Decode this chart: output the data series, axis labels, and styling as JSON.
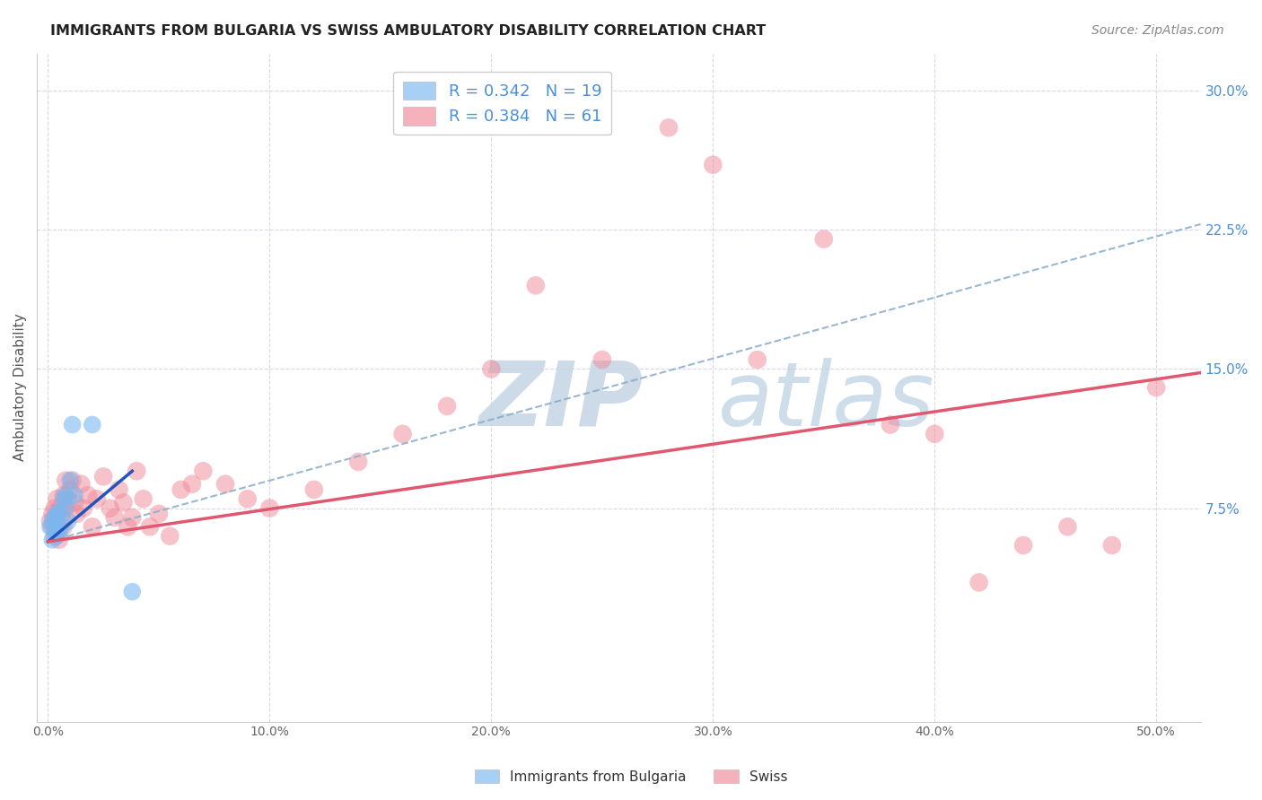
{
  "title": "IMMIGRANTS FROM BULGARIA VS SWISS AMBULATORY DISABILITY CORRELATION CHART",
  "source": "Source: ZipAtlas.com",
  "xlabel_ticks": [
    "0.0%",
    "10.0%",
    "20.0%",
    "30.0%",
    "40.0%",
    "50.0%"
  ],
  "ylabel_ticks": [
    "7.5%",
    "15.0%",
    "22.5%",
    "30.0%"
  ],
  "xlabel_vals": [
    0.0,
    0.1,
    0.2,
    0.3,
    0.4,
    0.5
  ],
  "ylabel_vals": [
    0.075,
    0.15,
    0.225,
    0.3
  ],
  "xlim": [
    -0.005,
    0.52
  ],
  "ylim": [
    -0.04,
    0.32
  ],
  "ylabel": "Ambulatory Disability",
  "legend_label_1": "R = 0.342   N = 19",
  "legend_label_2": "R = 0.384   N = 61",
  "legend_label_bottom_1": "Immigrants from Bulgaria",
  "legend_label_bottom_2": "Swiss",
  "bulgaria_color": "#7ab8f0",
  "swiss_color": "#f08898",
  "trendline_bulgaria_color": "#2255bb",
  "trendline_swiss_color": "#e05870",
  "trendline_dashed_color": "#88aac8",
  "watermark_color": "#c5d5e5",
  "title_color": "#222222",
  "source_color": "#888888",
  "tick_color": "#4a90d9",
  "xtick_color": "#666666",
  "ylabel_color": "#555555",
  "grid_color": "#d8d8e8",
  "bulgaria_x": [
    0.001,
    0.002,
    0.002,
    0.003,
    0.003,
    0.004,
    0.004,
    0.005,
    0.005,
    0.006,
    0.007,
    0.008,
    0.008,
    0.009,
    0.01,
    0.011,
    0.012,
    0.02,
    0.038
  ],
  "bulgaria_y": [
    0.065,
    0.068,
    0.058,
    0.07,
    0.064,
    0.072,
    0.06,
    0.073,
    0.062,
    0.065,
    0.08,
    0.082,
    0.076,
    0.068,
    0.09,
    0.12,
    0.082,
    0.12,
    0.03
  ],
  "swiss_x": [
    0.001,
    0.002,
    0.002,
    0.003,
    0.003,
    0.004,
    0.004,
    0.005,
    0.005,
    0.006,
    0.006,
    0.007,
    0.007,
    0.008,
    0.008,
    0.009,
    0.01,
    0.011,
    0.012,
    0.013,
    0.015,
    0.016,
    0.018,
    0.02,
    0.022,
    0.025,
    0.028,
    0.03,
    0.032,
    0.034,
    0.036,
    0.038,
    0.04,
    0.043,
    0.046,
    0.05,
    0.055,
    0.06,
    0.065,
    0.07,
    0.08,
    0.09,
    0.1,
    0.12,
    0.14,
    0.16,
    0.18,
    0.2,
    0.22,
    0.25,
    0.28,
    0.3,
    0.32,
    0.35,
    0.38,
    0.4,
    0.42,
    0.44,
    0.46,
    0.48,
    0.5
  ],
  "swiss_y": [
    0.068,
    0.072,
    0.065,
    0.075,
    0.06,
    0.08,
    0.065,
    0.073,
    0.058,
    0.07,
    0.076,
    0.065,
    0.082,
    0.075,
    0.09,
    0.08,
    0.085,
    0.09,
    0.078,
    0.072,
    0.088,
    0.075,
    0.082,
    0.065,
    0.08,
    0.092,
    0.075,
    0.07,
    0.085,
    0.078,
    0.065,
    0.07,
    0.095,
    0.08,
    0.065,
    0.072,
    0.06,
    0.085,
    0.088,
    0.095,
    0.088,
    0.08,
    0.075,
    0.085,
    0.1,
    0.115,
    0.13,
    0.15,
    0.195,
    0.155,
    0.28,
    0.26,
    0.155,
    0.22,
    0.12,
    0.115,
    0.035,
    0.055,
    0.065,
    0.055,
    0.14
  ],
  "trendline_bulgaria_x0": 0.0,
  "trendline_bulgaria_x1": 0.038,
  "trendline_bulgaria_y0": 0.057,
  "trendline_bulgaria_y1": 0.095,
  "trendline_swiss_x0": 0.0,
  "trendline_swiss_x1": 0.52,
  "trendline_swiss_y0": 0.057,
  "trendline_swiss_y1": 0.148,
  "trendline_dashed_x0": 0.0,
  "trendline_dashed_x1": 0.52,
  "trendline_dashed_y0": 0.057,
  "trendline_dashed_y1": 0.228
}
